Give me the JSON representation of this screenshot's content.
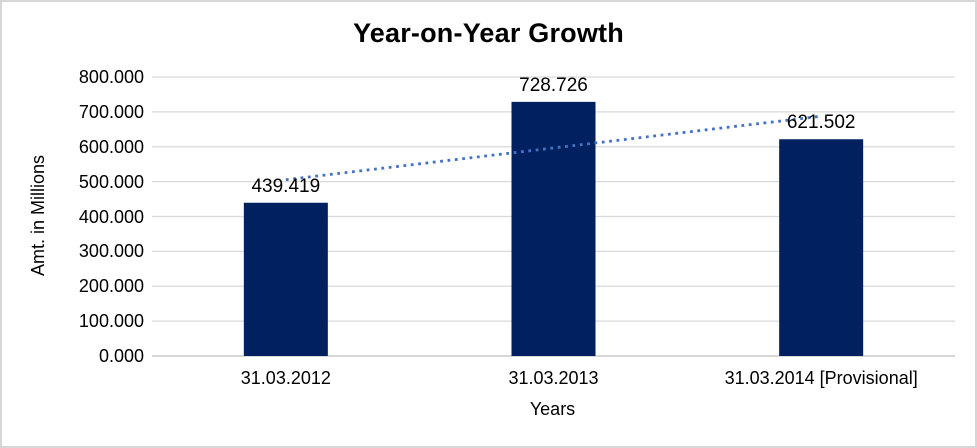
{
  "window": {
    "background": "#ffffff",
    "border_color": "#d6d6d6"
  },
  "chart_data": {
    "type": "bar",
    "title": "Year-on-Year Growth",
    "xlabel": "Years",
    "ylabel": "Amt. in Millions",
    "categories": [
      "31.03.2012",
      "31.03.2013",
      "31.03.2014 [Provisional]"
    ],
    "values": [
      439.419,
      728.726,
      621.502
    ],
    "data_labels": [
      "439.419",
      "728.726",
      "621.502"
    ],
    "ylim": [
      0,
      800
    ],
    "ytick_step": 100,
    "ytick_labels": [
      "0.000",
      "100.000",
      "200.000",
      "300.000",
      "400.000",
      "500.000",
      "600.000",
      "700.000",
      "800.000"
    ],
    "grid": true,
    "legend": "none",
    "trendline": {
      "type": "linear",
      "style": "dotted"
    },
    "colors": {
      "bar": "#002060",
      "trendline": "#4472c4",
      "gridline": "#d9d9d9",
      "axis_line": "#bfbfbf",
      "text": "#000000"
    }
  }
}
